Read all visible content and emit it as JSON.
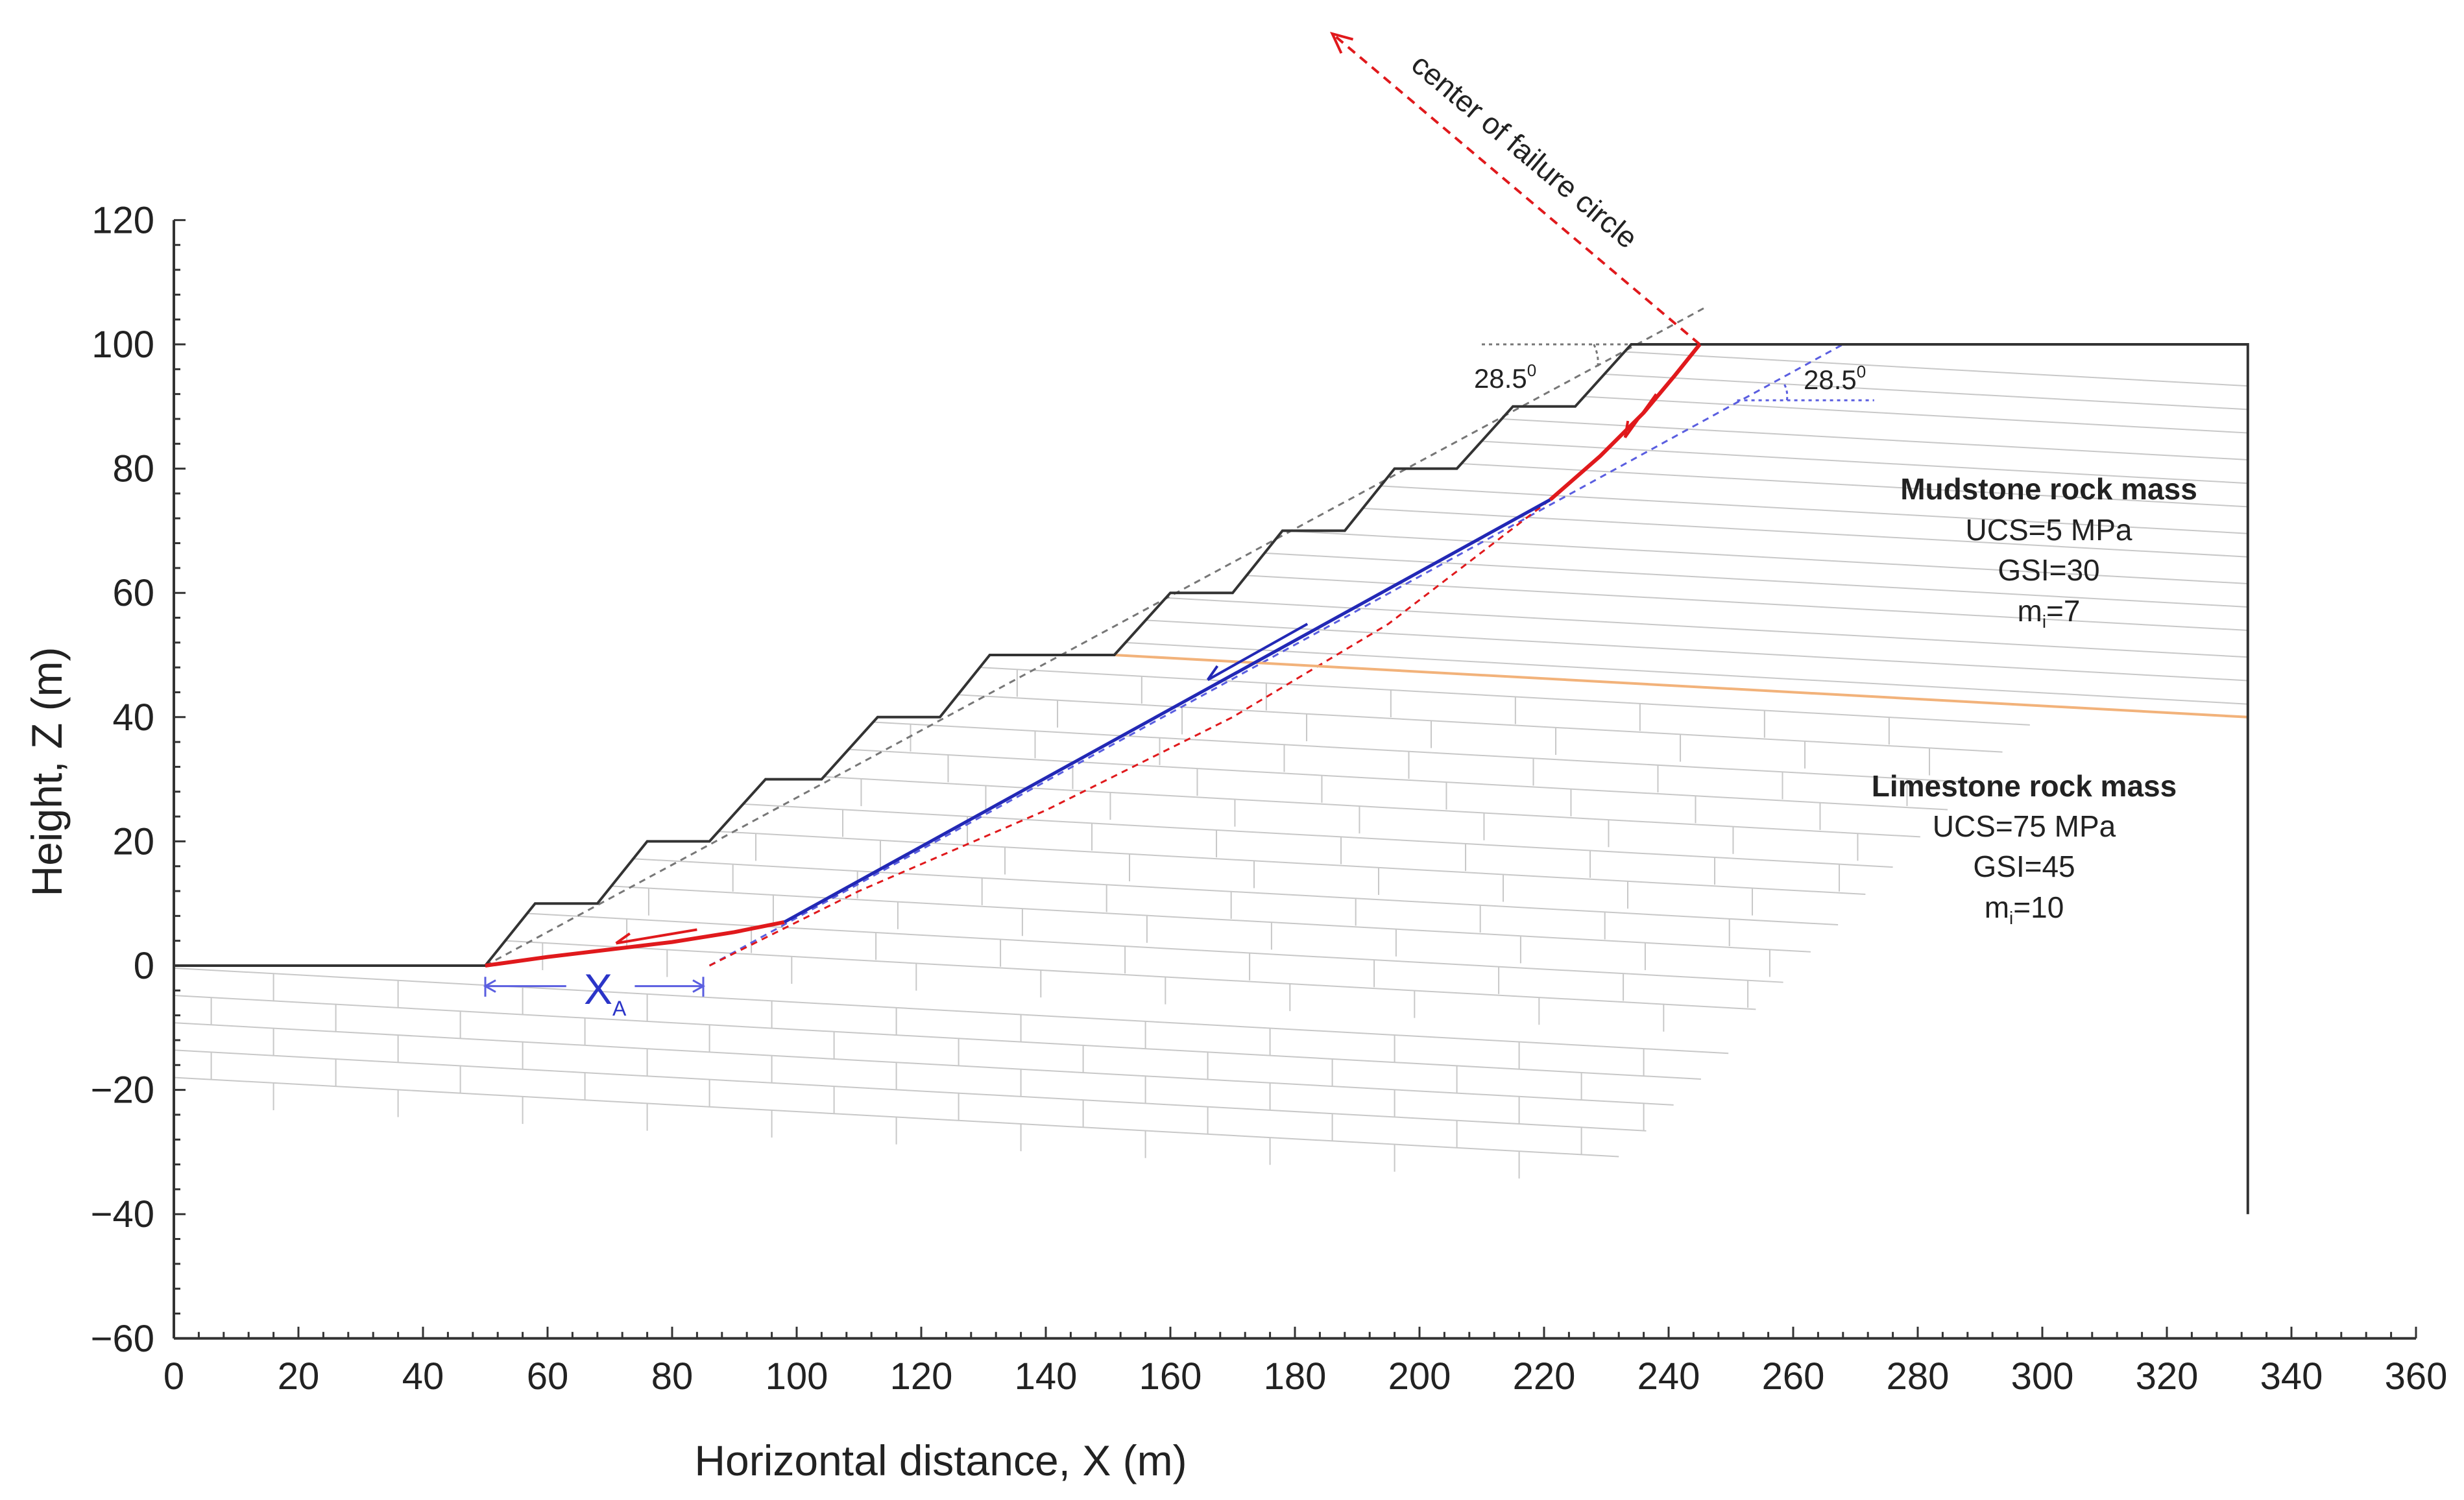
{
  "chart_data": {
    "type": "diagram",
    "xlabel": "Horizontal distance, X (m)",
    "ylabel": "Height, Z (m)",
    "xlim": [
      0,
      360
    ],
    "ylim": [
      -60,
      120
    ],
    "x_ticks": [
      "0",
      "20",
      "40",
      "60",
      "80",
      "100",
      "120",
      "140",
      "160",
      "180",
      "200",
      "220",
      "240",
      "260",
      "280",
      "300",
      "320",
      "340",
      "360"
    ],
    "y_ticks": [
      "−60",
      "−40",
      "−20",
      "0",
      "20",
      "40",
      "60",
      "80",
      "100",
      "120"
    ],
    "slope_profile": [
      [
        0,
        0
      ],
      [
        50,
        0
      ],
      [
        58,
        10
      ],
      [
        68,
        10
      ],
      [
        76,
        20
      ],
      [
        86,
        20
      ],
      [
        95,
        30
      ],
      [
        104,
        30
      ],
      [
        113,
        40
      ],
      [
        123,
        40
      ],
      [
        131,
        50
      ],
      [
        151,
        50
      ],
      [
        160,
        60
      ],
      [
        170,
        60
      ],
      [
        178,
        70
      ],
      [
        188,
        70
      ],
      [
        196,
        80
      ],
      [
        206,
        80
      ],
      [
        215,
        90
      ],
      [
        225,
        90
      ],
      [
        234,
        100
      ],
      [
        333,
        100
      ],
      [
        333,
        -40
      ]
    ],
    "layer_boundary": [
      [
        151,
        50
      ],
      [
        333,
        40
      ]
    ],
    "failure_surface": {
      "toe_arc": [
        [
          50,
          0
        ],
        [
          60,
          1.4
        ],
        [
          70,
          2.6
        ],
        [
          80,
          3.8
        ],
        [
          90,
          5.4
        ],
        [
          98,
          7
        ]
      ],
      "planar_segment": [
        [
          98,
          7
        ],
        [
          221,
          75
        ]
      ],
      "crest_arc": [
        [
          221,
          75
        ],
        [
          229,
          82
        ],
        [
          236,
          89
        ],
        [
          241,
          95
        ],
        [
          245,
          100
        ]
      ]
    },
    "overall_slope_line": [
      [
        50,
        0
      ],
      [
        246,
        106
      ]
    ],
    "back_line": [
      [
        86,
        0
      ],
      [
        268,
        100
      ]
    ],
    "circle_arc": [
      [
        86,
        0
      ],
      [
        110,
        12
      ],
      [
        140,
        25
      ],
      [
        170,
        40
      ],
      [
        195,
        55
      ],
      [
        221,
        75
      ]
    ],
    "center_direction": [
      [
        245,
        100
      ],
      [
        186,
        150
      ]
    ],
    "annotations": {
      "center_label": "center of failure circle",
      "angle_left": "28.5",
      "angle_right": "28.5",
      "angle_unit": "0",
      "xa_main": "X",
      "xa_sub": "A"
    },
    "rock_masses": [
      {
        "title": "Mudstone rock mass",
        "ucs": "UCS=5 MPa",
        "gsi": "GSI=30",
        "mi_main": "m",
        "mi_sub": "i",
        "mi_value": "=7"
      },
      {
        "title": "Limestone rock mass",
        "ucs": "UCS=75 MPa",
        "gsi": "GSI=45",
        "mi_main": "m",
        "mi_sub": "i",
        "mi_value": "=10"
      }
    ],
    "colors": {
      "profile": "#333333",
      "failure": "#e0191c",
      "planar": "#2228b5",
      "layer_boundary": "#f2b27a",
      "bedding": "#c8c8c8",
      "dash_gray": "#777777",
      "dash_blue": "#5a5ee0"
    }
  }
}
